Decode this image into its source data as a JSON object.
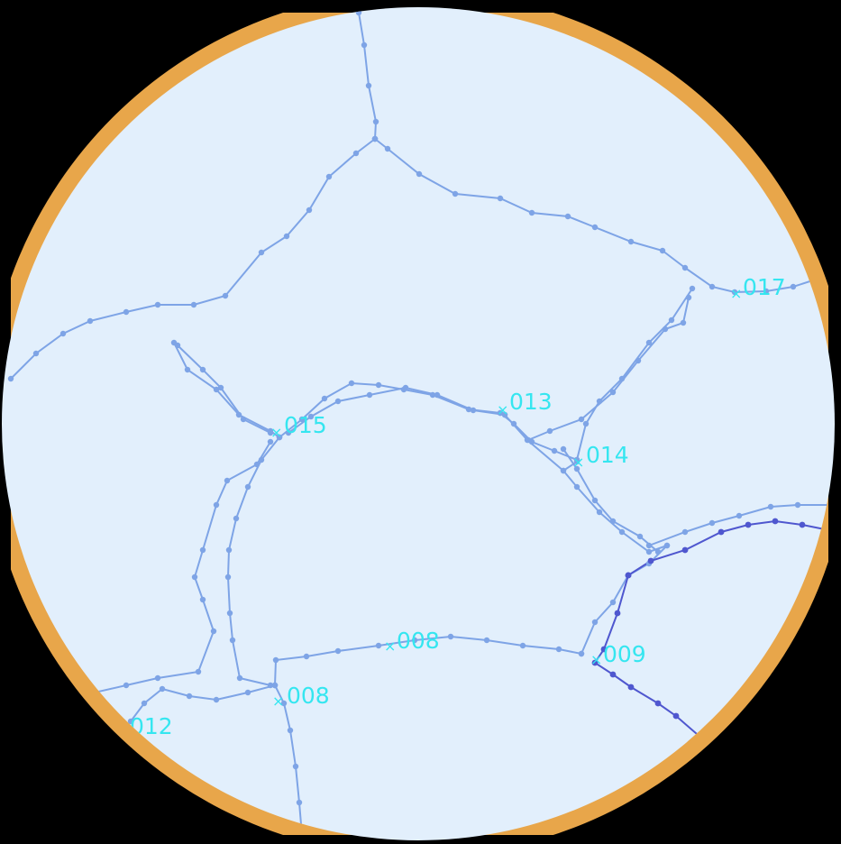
{
  "colors": {
    "background": "#000000",
    "ring": "#e8a64a",
    "field": "#e2effc",
    "boundary": "#7ea4e6",
    "highlight": "#4f57cf",
    "label": "#35e6f0"
  },
  "nodes": [
    {
      "id": "n017",
      "label": "017"
    },
    {
      "id": "n013",
      "label": "013"
    },
    {
      "id": "n014",
      "label": "014"
    },
    {
      "id": "n015",
      "label": "015"
    },
    {
      "id": "n00b",
      "label": "008"
    },
    {
      "id": "n009",
      "label": "009"
    },
    {
      "id": "n008",
      "label": "008"
    },
    {
      "id": "n012",
      "label": "012"
    }
  ]
}
